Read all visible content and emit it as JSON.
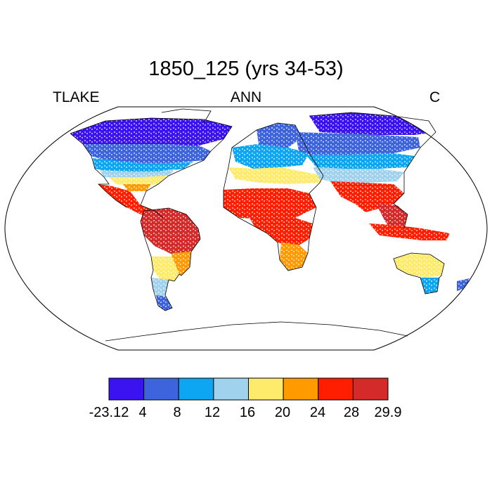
{
  "title": "1850_125 (yrs 34-53)",
  "left_label": "TLAKE",
  "center_label": "ANN",
  "right_label": "C",
  "colorbar": {
    "tick_labels": [
      "-23.12",
      "4",
      "8",
      "12",
      "16",
      "20",
      "24",
      "28",
      "29.9"
    ],
    "colors": [
      "#3b12f0",
      "#3d64dd",
      "#0da6f3",
      "#a0d2ee",
      "#ffeb6b",
      "#ff9a00",
      "#ff1e00",
      "#d42a2a"
    ]
  },
  "legend_bins": [
    {
      "color": "#3b12f0",
      "range": "-23.12 to 4"
    },
    {
      "color": "#3d64dd",
      "range": "4 to 8"
    },
    {
      "color": "#0da6f3",
      "range": "8 to 12"
    },
    {
      "color": "#a0d2ee",
      "range": "12 to 16"
    },
    {
      "color": "#ffeb6b",
      "range": "16 to 20"
    },
    {
      "color": "#ff9a00",
      "range": "20 to 24"
    },
    {
      "color": "#ff1e00",
      "range": "24 to 28"
    },
    {
      "color": "#d42a2a",
      "range": "28 to 29.9"
    }
  ],
  "regions": [
    {
      "name": "canada-arctic",
      "color": "#3b12f0"
    },
    {
      "name": "southern-canada-north-usa",
      "color": "#3d64dd"
    },
    {
      "name": "central-usa",
      "color": "#0da6f3"
    },
    {
      "name": "mid-usa",
      "color": "#a0d2ee"
    },
    {
      "name": "southern-usa",
      "color": "#ffeb6b"
    },
    {
      "name": "gulf-coast",
      "color": "#ff9a00"
    },
    {
      "name": "mexico-central-america",
      "color": "#ff1e00"
    },
    {
      "name": "amazon",
      "color": "#d42a2a"
    },
    {
      "name": "southern-brazil",
      "color": "#ff9a00"
    },
    {
      "name": "argentina",
      "color": "#ffeb6b"
    },
    {
      "name": "patagonia",
      "color": "#a0d2ee"
    },
    {
      "name": "tierra-del-fuego",
      "color": "#3d64dd"
    },
    {
      "name": "scandinavia",
      "color": "#3d64dd"
    },
    {
      "name": "europe",
      "color": "#0da6f3"
    },
    {
      "name": "mediterranean",
      "color": "#ffeb6b"
    },
    {
      "name": "north-africa",
      "color": "#ff1e00"
    },
    {
      "name": "central-africa",
      "color": "#ff1e00"
    },
    {
      "name": "east-africa",
      "color": "#ff9a00"
    },
    {
      "name": "siberia",
      "color": "#3b12f0"
    },
    {
      "name": "russia",
      "color": "#3d64dd"
    },
    {
      "name": "central-asia",
      "color": "#0da6f3"
    },
    {
      "name": "china-plateau",
      "color": "#a0d2ee"
    },
    {
      "name": "india",
      "color": "#ff1e00"
    },
    {
      "name": "southeast-asia",
      "color": "#d42a2a"
    },
    {
      "name": "indonesia",
      "color": "#ff1e00"
    },
    {
      "name": "australia",
      "color": "#ffeb6b"
    },
    {
      "name": "southeast-australia",
      "color": "#0da6f3"
    },
    {
      "name": "new-zealand",
      "color": "#3d64dd"
    }
  ]
}
